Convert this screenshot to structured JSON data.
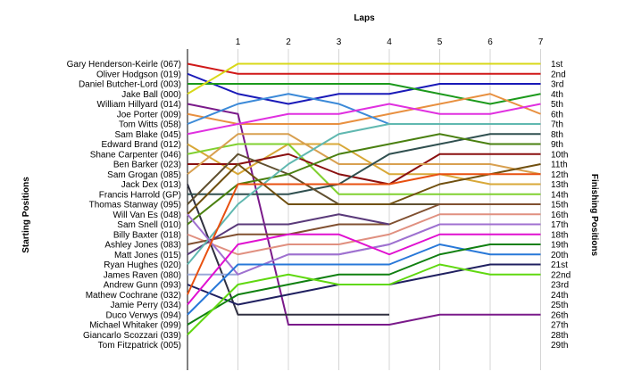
{
  "chart_data": {
    "type": "line",
    "title": "",
    "xlabel": "Laps",
    "ylabel_left": "Starting Positions",
    "ylabel_right": "Finishing Positions",
    "x_ticks": [
      "1",
      "2",
      "3",
      "4",
      "5",
      "6",
      "7"
    ],
    "xlim": [
      0,
      7
    ],
    "ylim_positions": [
      1,
      29
    ],
    "y_inverted": true,
    "drivers": [
      "Gary Henderson-Keirle (067)",
      "Oliver Hodgson (019)",
      "Daniel Butcher-Lord (003)",
      "Jake Ball (000)",
      "William Hillyard (014)",
      "Joe Porter (009)",
      "Tom Witts (058)",
      "Sam Blake (045)",
      "Edward Brand (012)",
      "Shane Carpenter (046)",
      "Ben Barker (023)",
      "Sam Grogan (085)",
      "Jack Dex (013)",
      "Francis Harrold (GP)",
      "Thomas Stanway (095)",
      "Will Van Es (048)",
      "Sam Snell (010)",
      "Billy Baxter (018)",
      "Ashley Jones (083)",
      "Matt Jones (015)",
      "Ryan Hughes (020)",
      "James Raven (080)",
      "Andrew Gunn (093)",
      "Mathew Cochrane (032)",
      "Jamie Perry (034)",
      "Duco Verwys (094)",
      "Michael Whitaker (099)",
      "Giancarlo Scozzari (039)",
      "Tom Fitzpatrick (005)"
    ],
    "finishing_labels": [
      "1st",
      "2nd",
      "3rd",
      "4th",
      "5th",
      "6th",
      "7th",
      "8th",
      "9th",
      "10th",
      "11th",
      "12th",
      "13th",
      "14th",
      "15th",
      "16th",
      "17th",
      "18th",
      "19th",
      "20th",
      "21st",
      "22nd",
      "23rd",
      "24th",
      "25th",
      "26th",
      "27th",
      "28th",
      "29th"
    ],
    "grid": "vertical",
    "series": [
      {
        "color": "#d01818",
        "positions": [
          1,
          2,
          2,
          2,
          2,
          2,
          2,
          2
        ]
      },
      {
        "color": "#1a1ab8",
        "positions": [
          2,
          4,
          5,
          4,
          4,
          3,
          3,
          3
        ]
      },
      {
        "color": "#1c9a1c",
        "positions": [
          3,
          3,
          3,
          3,
          3,
          4,
          5,
          4
        ]
      },
      {
        "color": "#d8d818",
        "positions": [
          4,
          1,
          1,
          1,
          1,
          1,
          1,
          1
        ]
      },
      {
        "color": "#7a1a8a",
        "positions": [
          5,
          6,
          27,
          27,
          27,
          26,
          26,
          26
        ]
      },
      {
        "color": "#e89040",
        "positions": [
          6,
          7,
          7,
          7,
          6,
          5,
          4,
          6
        ]
      },
      {
        "color": "#3c8ad8",
        "positions": [
          7,
          5,
          4,
          5,
          7
        ]
      },
      {
        "color": "#e030e0",
        "positions": [
          8,
          7,
          6,
          6,
          5,
          6,
          6,
          5
        ]
      },
      {
        "color": "#d8a838",
        "positions": [
          9,
          12,
          9,
          9,
          12,
          12,
          13,
          13
        ]
      },
      {
        "color": "#80d030",
        "positions": [
          10,
          9,
          9,
          14,
          14,
          14,
          14,
          14
        ]
      },
      {
        "color": "#8a1010",
        "positions": [
          11,
          11,
          10,
          12,
          13,
          10,
          10,
          10
        ]
      },
      {
        "color": "#d8a050",
        "positions": [
          12,
          8,
          8,
          11,
          11,
          11,
          11,
          12
        ]
      },
      {
        "color": "#303040",
        "positions": [
          13,
          26,
          26,
          26,
          26
        ]
      },
      {
        "color": "#305050",
        "positions": [
          14,
          14,
          14,
          13,
          10,
          9,
          8,
          8
        ]
      },
      {
        "color": "#605030",
        "positions": [
          15,
          10,
          12,
          15,
          15,
          15,
          15,
          15
        ]
      },
      {
        "color": "#705010",
        "positions": [
          16,
          11,
          15,
          15,
          15,
          13,
          12,
          11
        ]
      },
      {
        "color": "#4a8010",
        "positions": [
          17,
          13,
          12,
          10,
          9,
          8,
          9,
          9
        ]
      },
      {
        "color": "#e09080",
        "positions": [
          18,
          20,
          19,
          19,
          18,
          16,
          16,
          16
        ]
      },
      {
        "color": "#805030",
        "positions": [
          19,
          18,
          18,
          17,
          17,
          15,
          15,
          15
        ]
      },
      {
        "color": "#5a3a7a",
        "positions": [
          20,
          17,
          17,
          16,
          17
        ]
      },
      {
        "color": "#60b8b0",
        "positions": [
          21,
          15,
          11,
          8,
          7,
          7,
          7,
          7
        ]
      },
      {
        "color": "#9aa8d8",
        "positions": [
          22,
          22,
          20,
          20,
          19,
          17,
          17,
          17
        ]
      },
      {
        "color": "#a070d0",
        "positions": [
          16,
          22,
          20,
          20,
          19,
          17,
          17,
          17
        ]
      },
      {
        "color": "#202060",
        "positions": [
          23,
          25,
          24,
          23,
          23,
          22,
          21,
          21
        ]
      },
      {
        "color": "#e85010",
        "positions": [
          24,
          13,
          13,
          13,
          13,
          12,
          12,
          12
        ]
      },
      {
        "color": "#e010d0",
        "positions": [
          25,
          19,
          18,
          18,
          20,
          18,
          18,
          18
        ]
      },
      {
        "color": "#2878d8",
        "positions": [
          26,
          21,
          21,
          21,
          21,
          19,
          20,
          20
        ]
      },
      {
        "color": "#108010",
        "positions": [
          27,
          24,
          23,
          22,
          22,
          20,
          19,
          19
        ]
      },
      {
        "color": "#60d810",
        "positions": [
          28,
          23,
          22,
          23,
          23,
          21,
          22,
          22
        ]
      }
    ]
  }
}
